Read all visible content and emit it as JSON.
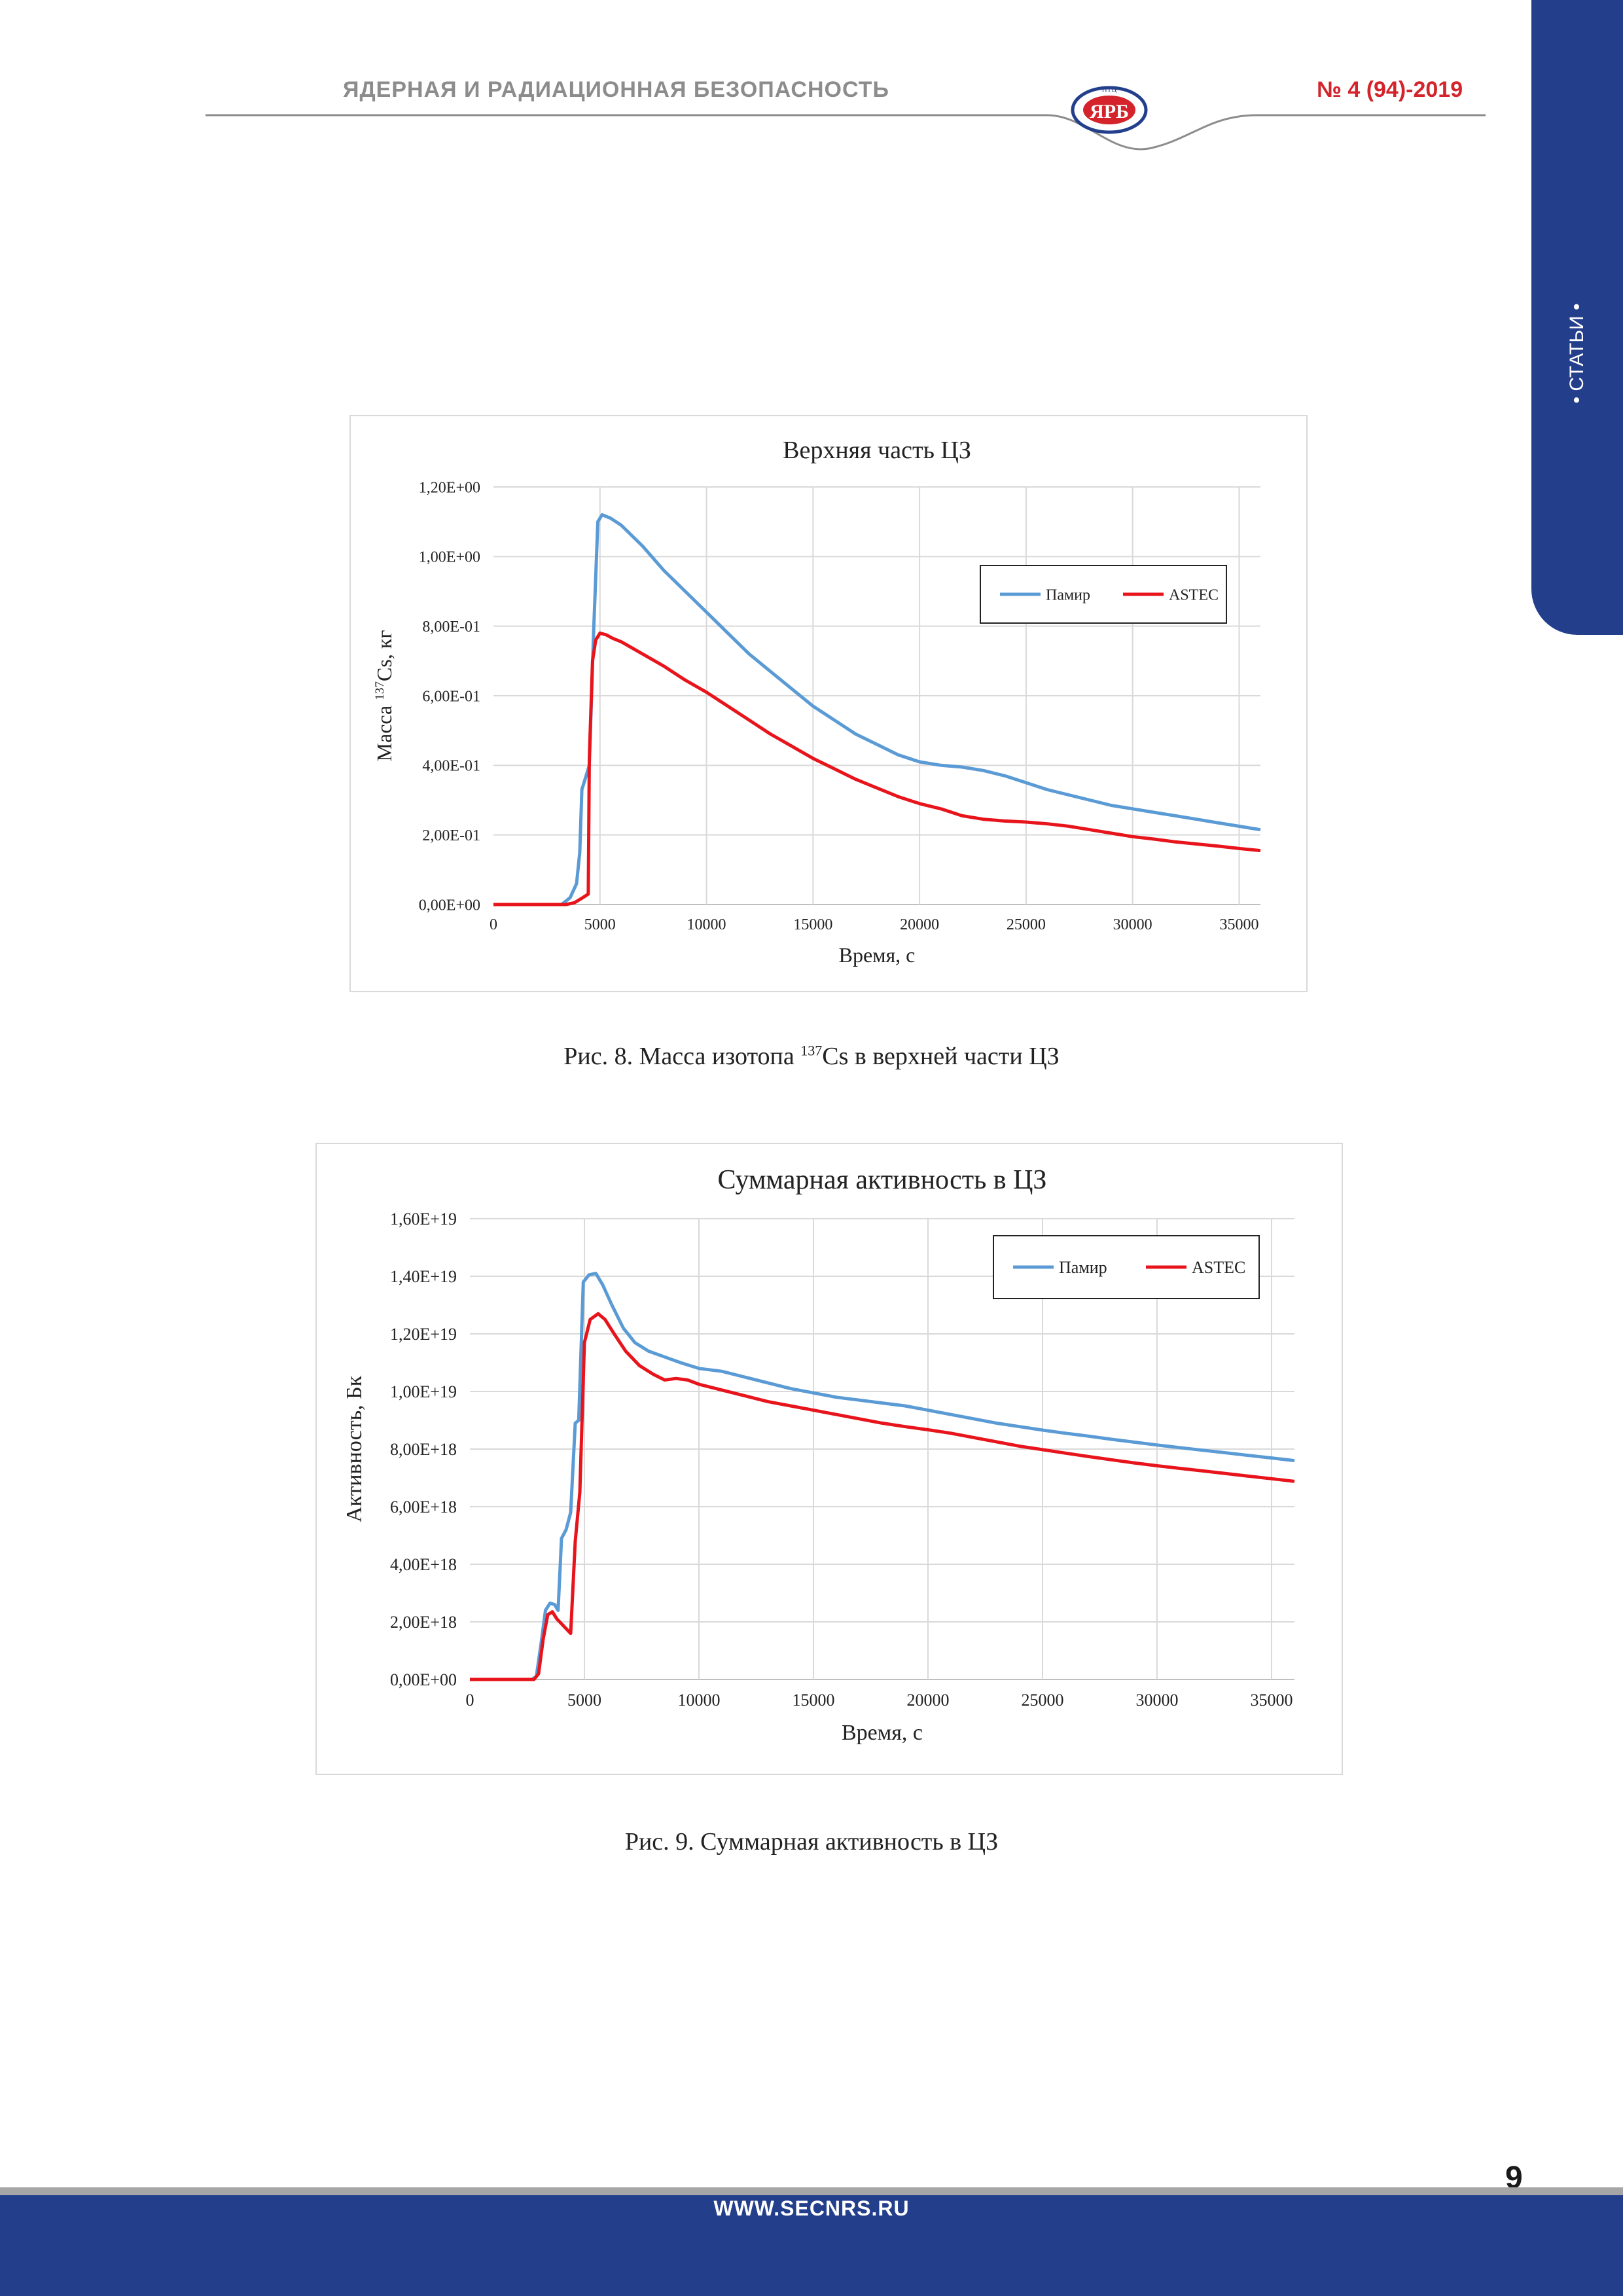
{
  "header": {
    "journal_title": "ЯДЕРНАЯ И РАДИАЦИОННАЯ БЕЗОПАСНОСТЬ",
    "issue": "№ 4 (94)-2019",
    "logo_text": "ЯРБ",
    "logo_small_text": "НТЦ"
  },
  "side_tab": {
    "label": "• СТАТЬИ •"
  },
  "colors": {
    "brand_blue": "#233f8c",
    "accent_red": "#d4232b",
    "series_pamir": "#5b9bd5",
    "series_astec": "#e8141c"
  },
  "captions": {
    "fig8_prefix": "Рис. 8. Масса изотопа ",
    "fig8_sup": "137",
    "fig8_suffix": "Cs в верхней части ЦЗ",
    "fig9": "Рис. 9. Суммарная активность в ЦЗ"
  },
  "footer": {
    "page_number": "9",
    "url": "WWW.SECNRS.RU"
  },
  "chart_data": [
    {
      "type": "line",
      "title": "Верхняя часть ЦЗ",
      "xlabel": "Время, с",
      "ylabel_prefix": "Масса ",
      "ylabel_sup": "137",
      "ylabel_suffix": "Cs, кг",
      "xlim": [
        0,
        36000
      ],
      "ylim": [
        0,
        1.2
      ],
      "xticks": [
        0,
        5000,
        10000,
        15000,
        20000,
        25000,
        30000,
        35000
      ],
      "xtick_labels": [
        "0",
        "5000",
        "10000",
        "15000",
        "20000",
        "25000",
        "30000",
        "35000"
      ],
      "yticks": [
        0,
        0.2,
        0.4,
        0.6,
        0.8,
        1.0,
        1.2
      ],
      "ytick_labels": [
        "0,00E+00",
        "2,00E-01",
        "4,00E-01",
        "6,00E-01",
        "8,00E-01",
        "1,00E+00",
        "1,20E+00"
      ],
      "grid": true,
      "legend_position": "top-right",
      "series": [
        {
          "name": "Памир",
          "color": "#5b9bd5",
          "points": [
            [
              0,
              0
            ],
            [
              3200,
              0
            ],
            [
              3600,
              0.02
            ],
            [
              3900,
              0.06
            ],
            [
              4050,
              0.15
            ],
            [
              4150,
              0.33
            ],
            [
              4300,
              0.36
            ],
            [
              4500,
              0.4
            ],
            [
              4700,
              0.78
            ],
            [
              4900,
              1.1
            ],
            [
              5100,
              1.12
            ],
            [
              5500,
              1.11
            ],
            [
              6000,
              1.09
            ],
            [
              7000,
              1.03
            ],
            [
              8000,
              0.96
            ],
            [
              9000,
              0.9
            ],
            [
              10000,
              0.84
            ],
            [
              11000,
              0.78
            ],
            [
              12000,
              0.72
            ],
            [
              13000,
              0.67
            ],
            [
              14000,
              0.62
            ],
            [
              15000,
              0.57
            ],
            [
              16000,
              0.53
            ],
            [
              17000,
              0.49
            ],
            [
              18000,
              0.46
            ],
            [
              19000,
              0.43
            ],
            [
              20000,
              0.41
            ],
            [
              21000,
              0.4
            ],
            [
              22000,
              0.395
            ],
            [
              23000,
              0.385
            ],
            [
              24000,
              0.37
            ],
            [
              25000,
              0.35
            ],
            [
              26000,
              0.33
            ],
            [
              27000,
              0.315
            ],
            [
              28000,
              0.3
            ],
            [
              29000,
              0.285
            ],
            [
              30000,
              0.275
            ],
            [
              31000,
              0.265
            ],
            [
              32000,
              0.255
            ],
            [
              33000,
              0.245
            ],
            [
              34000,
              0.235
            ],
            [
              35000,
              0.225
            ],
            [
              36000,
              0.215
            ]
          ]
        },
        {
          "name": "ASTEC",
          "color": "#e8141c",
          "points": [
            [
              0,
              0
            ],
            [
              3400,
              0
            ],
            [
              3800,
              0.005
            ],
            [
              4200,
              0.02
            ],
            [
              4450,
              0.03
            ],
            [
              4500,
              0.42
            ],
            [
              4650,
              0.7
            ],
            [
              4800,
              0.76
            ],
            [
              5000,
              0.78
            ],
            [
              5300,
              0.775
            ],
            [
              5600,
              0.765
            ],
            [
              6000,
              0.755
            ],
            [
              7000,
              0.72
            ],
            [
              8000,
              0.685
            ],
            [
              9000,
              0.645
            ],
            [
              10000,
              0.61
            ],
            [
              11000,
              0.57
            ],
            [
              12000,
              0.53
            ],
            [
              13000,
              0.49
            ],
            [
              14000,
              0.455
            ],
            [
              15000,
              0.42
            ],
            [
              16000,
              0.39
            ],
            [
              17000,
              0.36
            ],
            [
              18000,
              0.335
            ],
            [
              19000,
              0.31
            ],
            [
              20000,
              0.29
            ],
            [
              21000,
              0.275
            ],
            [
              22000,
              0.255
            ],
            [
              23000,
              0.245
            ],
            [
              24000,
              0.24
            ],
            [
              25000,
              0.237
            ],
            [
              26000,
              0.232
            ],
            [
              27000,
              0.225
            ],
            [
              28000,
              0.215
            ],
            [
              29000,
              0.205
            ],
            [
              30000,
              0.195
            ],
            [
              31000,
              0.188
            ],
            [
              32000,
              0.18
            ],
            [
              33000,
              0.174
            ],
            [
              34000,
              0.168
            ],
            [
              35000,
              0.161
            ],
            [
              36000,
              0.155
            ]
          ]
        }
      ]
    },
    {
      "type": "line",
      "title": "Суммарная активность в ЦЗ",
      "xlabel": "Время, с",
      "ylabel": "Активность, Бк",
      "xlim": [
        0,
        36000
      ],
      "ylim": [
        0,
        1.6e+19
      ],
      "xticks": [
        0,
        5000,
        10000,
        15000,
        20000,
        25000,
        30000,
        35000
      ],
      "xtick_labels": [
        "0",
        "5000",
        "10000",
        "15000",
        "20000",
        "25000",
        "30000",
        "35000"
      ],
      "yticks": [
        0,
        2e+18,
        4e+18,
        6e+18,
        8e+18,
        1e+19,
        1.2e+19,
        1.4e+19,
        1.6e+19
      ],
      "ytick_labels": [
        "0,00E+00",
        "2,00E+18",
        "4,00E+18",
        "6,00E+18",
        "8,00E+18",
        "1,00E+19",
        "1,20E+19",
        "1,40E+19",
        "1,60E+19"
      ],
      "grid": true,
      "legend_position": "top-right",
      "series": [
        {
          "name": "Памир",
          "color": "#5b9bd5",
          "points": [
            [
              0,
              0
            ],
            [
              2700,
              0
            ],
            [
              2900,
              1e+17
            ],
            [
              3100,
              1.2e+18
            ],
            [
              3300,
              2.4e+18
            ],
            [
              3500,
              2.65e+18
            ],
            [
              3700,
              2.6e+18
            ],
            [
              3850,
              2.4e+18
            ],
            [
              4000,
              4.9e+18
            ],
            [
              4200,
              5.2e+18
            ],
            [
              4400,
              5.8e+18
            ],
            [
              4600,
              8.9e+18
            ],
            [
              4750,
              9e+18
            ],
            [
              4950,
              1.38e+19
            ],
            [
              5200,
              1.405e+19
            ],
            [
              5500,
              1.41e+19
            ],
            [
              5800,
              1.37e+19
            ],
            [
              6200,
              1.3e+19
            ],
            [
              6700,
              1.22e+19
            ],
            [
              7200,
              1.17e+19
            ],
            [
              7800,
              1.14e+19
            ],
            [
              8500,
              1.12e+19
            ],
            [
              9200,
              1.1e+19
            ],
            [
              10000,
              1.08e+19
            ],
            [
              11000,
              1.07e+19
            ],
            [
              12000,
              1.05e+19
            ],
            [
              13000,
              1.03e+19
            ],
            [
              14000,
              1.01e+19
            ],
            [
              15000,
              9.95e+18
            ],
            [
              16000,
              9.8e+18
            ],
            [
              17000,
              9.7e+18
            ],
            [
              18000,
              9.6e+18
            ],
            [
              19000,
              9.5e+18
            ],
            [
              20000,
              9.35e+18
            ],
            [
              21000,
              9.2e+18
            ],
            [
              22000,
              9.05e+18
            ],
            [
              23000,
              8.9e+18
            ],
            [
              24000,
              8.78e+18
            ],
            [
              25000,
              8.66e+18
            ],
            [
              26000,
              8.55e+18
            ],
            [
              27000,
              8.45e+18
            ],
            [
              28000,
              8.34e+18
            ],
            [
              29000,
              8.24e+18
            ],
            [
              30000,
              8.14e+18
            ],
            [
              31000,
              8.05e+18
            ],
            [
              32000,
              7.96e+18
            ],
            [
              33000,
              7.87e+18
            ],
            [
              34000,
              7.78e+18
            ],
            [
              35000,
              7.69e+18
            ],
            [
              36000,
              7.6e+18
            ]
          ]
        },
        {
          "name": "ASTEC",
          "color": "#e8141c",
          "points": [
            [
              0,
              0
            ],
            [
              2800,
              0
            ],
            [
              3000,
              2e+17
            ],
            [
              3200,
              1.4e+18
            ],
            [
              3400,
              2.25e+18
            ],
            [
              3600,
              2.35e+18
            ],
            [
              3800,
              2.1e+18
            ],
            [
              4100,
              1.85e+18
            ],
            [
              4400,
              1.6e+18
            ],
            [
              4600,
              4.8e+18
            ],
            [
              4800,
              6.5e+18
            ],
            [
              5000,
              1.17e+19
            ],
            [
              5250,
              1.25e+19
            ],
            [
              5600,
              1.27e+19
            ],
            [
              5900,
              1.25e+19
            ],
            [
              6300,
              1.2e+19
            ],
            [
              6800,
              1.14e+19
            ],
            [
              7400,
              1.09e+19
            ],
            [
              8000,
              1.06e+19
            ],
            [
              8500,
              1.04e+19
            ],
            [
              9000,
              1.045e+19
            ],
            [
              9500,
              1.04e+19
            ],
            [
              10000,
              1.025e+19
            ],
            [
              11000,
              1.005e+19
            ],
            [
              12000,
              9.85e+18
            ],
            [
              13000,
              9.65e+18
            ],
            [
              14000,
              9.5e+18
            ],
            [
              15000,
              9.35e+18
            ],
            [
              16000,
              9.2e+18
            ],
            [
              17000,
              9.05e+18
            ],
            [
              18000,
              8.9e+18
            ],
            [
              19000,
              8.78e+18
            ],
            [
              20000,
              8.67e+18
            ],
            [
              21000,
              8.55e+18
            ],
            [
              22000,
              8.4e+18
            ],
            [
              23000,
              8.25e+18
            ],
            [
              24000,
              8.1e+18
            ],
            [
              25000,
              7.98e+18
            ],
            [
              26000,
              7.86e+18
            ],
            [
              27000,
              7.74e+18
            ],
            [
              28000,
              7.63e+18
            ],
            [
              29000,
              7.52e+18
            ],
            [
              30000,
              7.42e+18
            ],
            [
              31000,
              7.33e+18
            ],
            [
              32000,
              7.24e+18
            ],
            [
              33000,
              7.15e+18
            ],
            [
              34000,
              7.06e+18
            ],
            [
              35000,
              6.97e+18
            ],
            [
              36000,
              6.88e+18
            ]
          ]
        }
      ]
    }
  ]
}
